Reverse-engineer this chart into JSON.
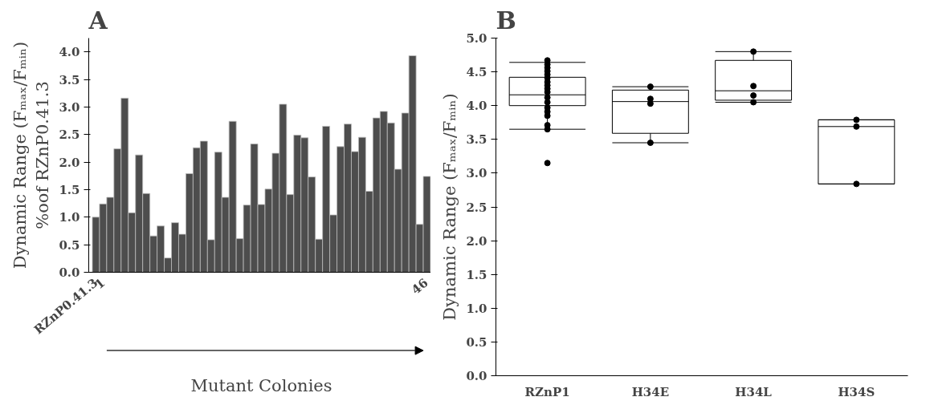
{
  "chart_data": [
    {
      "type": "bar",
      "title": "A",
      "ylabel": "Dynamic Range (Fₘₐₓ/Fₘᵢₙ)\n%oof RZnP0.41.3",
      "xlabel": "Mutant Colonies",
      "categories": [
        "RZnP0.41.3",
        "1",
        null,
        null,
        null,
        null,
        null,
        null,
        null,
        null,
        null,
        null,
        null,
        null,
        null,
        null,
        null,
        null,
        null,
        null,
        null,
        null,
        null,
        null,
        null,
        null,
        null,
        null,
        null,
        null,
        null,
        null,
        null,
        null,
        null,
        null,
        null,
        null,
        null,
        null,
        null,
        null,
        null,
        null,
        null,
        null,
        "46"
      ],
      "values": [
        1.0,
        1.24,
        1.36,
        2.24,
        3.16,
        1.08,
        2.13,
        1.43,
        0.66,
        0.84,
        0.26,
        0.9,
        0.69,
        1.79,
        2.26,
        2.38,
        0.59,
        2.18,
        1.36,
        2.74,
        0.61,
        1.22,
        2.33,
        1.23,
        1.51,
        2.16,
        3.05,
        1.41,
        2.49,
        2.44,
        1.73,
        0.6,
        2.65,
        1.04,
        2.28,
        2.69,
        2.19,
        2.45,
        1.47,
        2.8,
        2.92,
        2.71,
        1.87,
        2.89,
        3.93,
        0.87,
        1.74
      ],
      "color": "#4d4d4d",
      "ylim": [
        0,
        4.25
      ],
      "yticks": [
        {
          "value": 0,
          "label": "0.0"
        },
        0.5,
        {
          "value": 1,
          "label": "1.0"
        },
        1.5,
        {
          "value": 2,
          "label": "2.0"
        },
        2.5,
        {
          "value": 3,
          "label": "3.0"
        },
        3.5,
        {
          "value": 4,
          "label": "4.0"
        }
      ],
      "grid": false
    },
    {
      "type": "box",
      "title": "B",
      "ylabel": "Dynamic Range (Fₘₐₓ/Fₘᵢₙ)",
      "categories": [
        "RZnP1",
        "H34E",
        "H34L",
        "H34S"
      ],
      "boxes": [
        {
          "low": 3.65,
          "q1": 4.0,
          "median": 4.16,
          "q3": 4.42,
          "high": 4.64,
          "outliers": [
            3.15
          ]
        },
        {
          "low": 3.45,
          "q1": 3.59,
          "median": 4.06,
          "q3": 4.23,
          "high": 4.28
        },
        {
          "low": 4.05,
          "q1": 4.08,
          "median": 4.22,
          "q3": 4.67,
          "high": 4.8
        },
        {
          "low": 2.84,
          "q1": 2.84,
          "median": 3.69,
          "q3": 3.79,
          "high": 3.79
        }
      ],
      "series": [
        {
          "type": "scatter",
          "color": "#000000",
          "marker": "circle",
          "x": [
            "RZnP1",
            "RZnP1",
            "RZnP1",
            "RZnP1",
            "RZnP1",
            "RZnP1",
            "RZnP1",
            "RZnP1",
            "RZnP1",
            "RZnP1",
            "RZnP1",
            "RZnP1",
            "RZnP1",
            "RZnP1",
            "RZnP1",
            "RZnP1",
            "RZnP1",
            "H34E",
            "H34E",
            "H34E",
            "H34E",
            "H34L",
            "H34L",
            "H34L",
            "H34L",
            "H34S",
            "H34S",
            "H34S"
          ],
          "values": [
            4.67,
            4.61,
            4.56,
            4.51,
            4.46,
            4.41,
            4.35,
            4.3,
            4.25,
            4.2,
            4.12,
            4.05,
            3.97,
            3.91,
            3.85,
            3.71,
            3.65,
            4.28,
            4.1,
            4.03,
            3.45,
            4.8,
            4.29,
            4.15,
            4.05,
            3.79,
            3.69,
            2.84
          ]
        }
      ],
      "ylim": [
        0,
        5
      ],
      "yticks": [
        {
          "value": 0,
          "label": "0.0"
        },
        0.5,
        {
          "value": 1,
          "label": "1.0"
        },
        1.5,
        {
          "value": 2,
          "label": "2.0"
        },
        2.5,
        {
          "value": 3,
          "label": "3.0"
        },
        3.5,
        {
          "value": 4,
          "label": "4.0"
        },
        4.5,
        {
          "value": 5,
          "label": "5.0"
        }
      ],
      "grid": false
    }
  ]
}
